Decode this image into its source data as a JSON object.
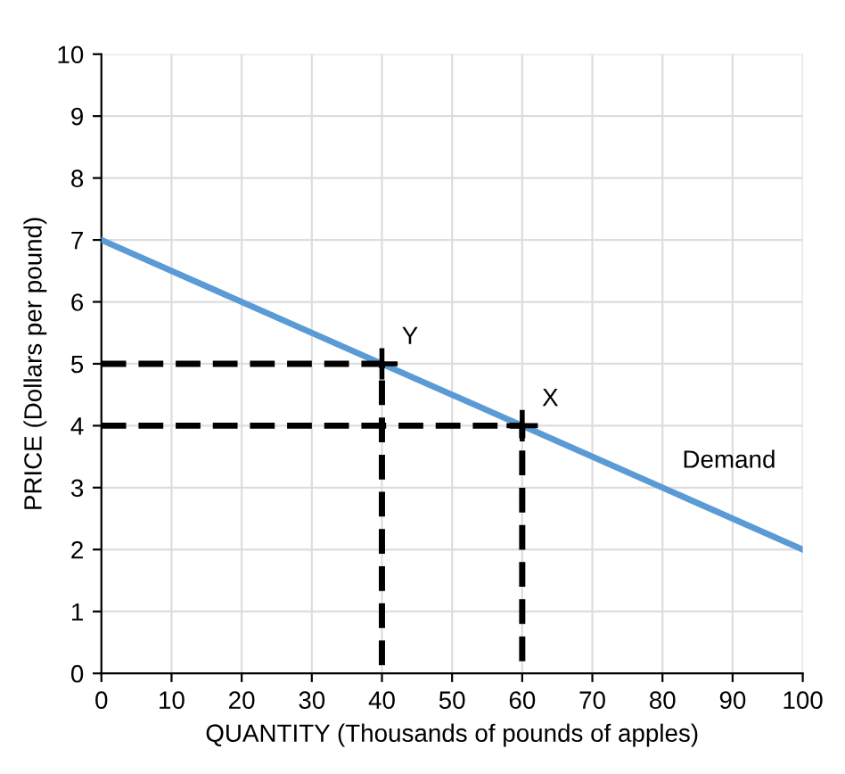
{
  "chart_data": {
    "type": "line",
    "xlabel": "QUANTITY (Thousands of pounds of apples)",
    "ylabel": "PRICE (Dollars per pound)",
    "xlim": [
      0,
      100
    ],
    "ylim": [
      0,
      10
    ],
    "xticks": [
      0,
      10,
      20,
      30,
      40,
      50,
      60,
      70,
      80,
      90,
      100
    ],
    "yticks": [
      0,
      1,
      2,
      3,
      4,
      5,
      6,
      7,
      8,
      9,
      10
    ],
    "grid": true,
    "legend": false,
    "series": [
      {
        "color": "#5b9bd5",
        "line_style": "solid",
        "x": [
          0,
          100
        ],
        "values": [
          7,
          2
        ]
      },
      {
        "color": "#000000",
        "line_style": "dashed",
        "x": [
          0,
          40,
          40
        ],
        "values": [
          5,
          5,
          0
        ]
      },
      {
        "color": "#000000",
        "line_style": "dashed",
        "x": [
          0,
          60,
          60
        ],
        "values": [
          4,
          4,
          0
        ]
      },
      {
        "type": "scatter",
        "color": "#000000",
        "marker": "cross",
        "x": [
          40,
          60
        ],
        "values": [
          5,
          4
        ]
      }
    ],
    "annotations": [
      {
        "text": "Y",
        "x": 40,
        "y": 5
      },
      {
        "text": "X",
        "x": 60,
        "y": 4
      },
      {
        "text": "Demand",
        "x": 80,
        "y": 3
      }
    ]
  }
}
